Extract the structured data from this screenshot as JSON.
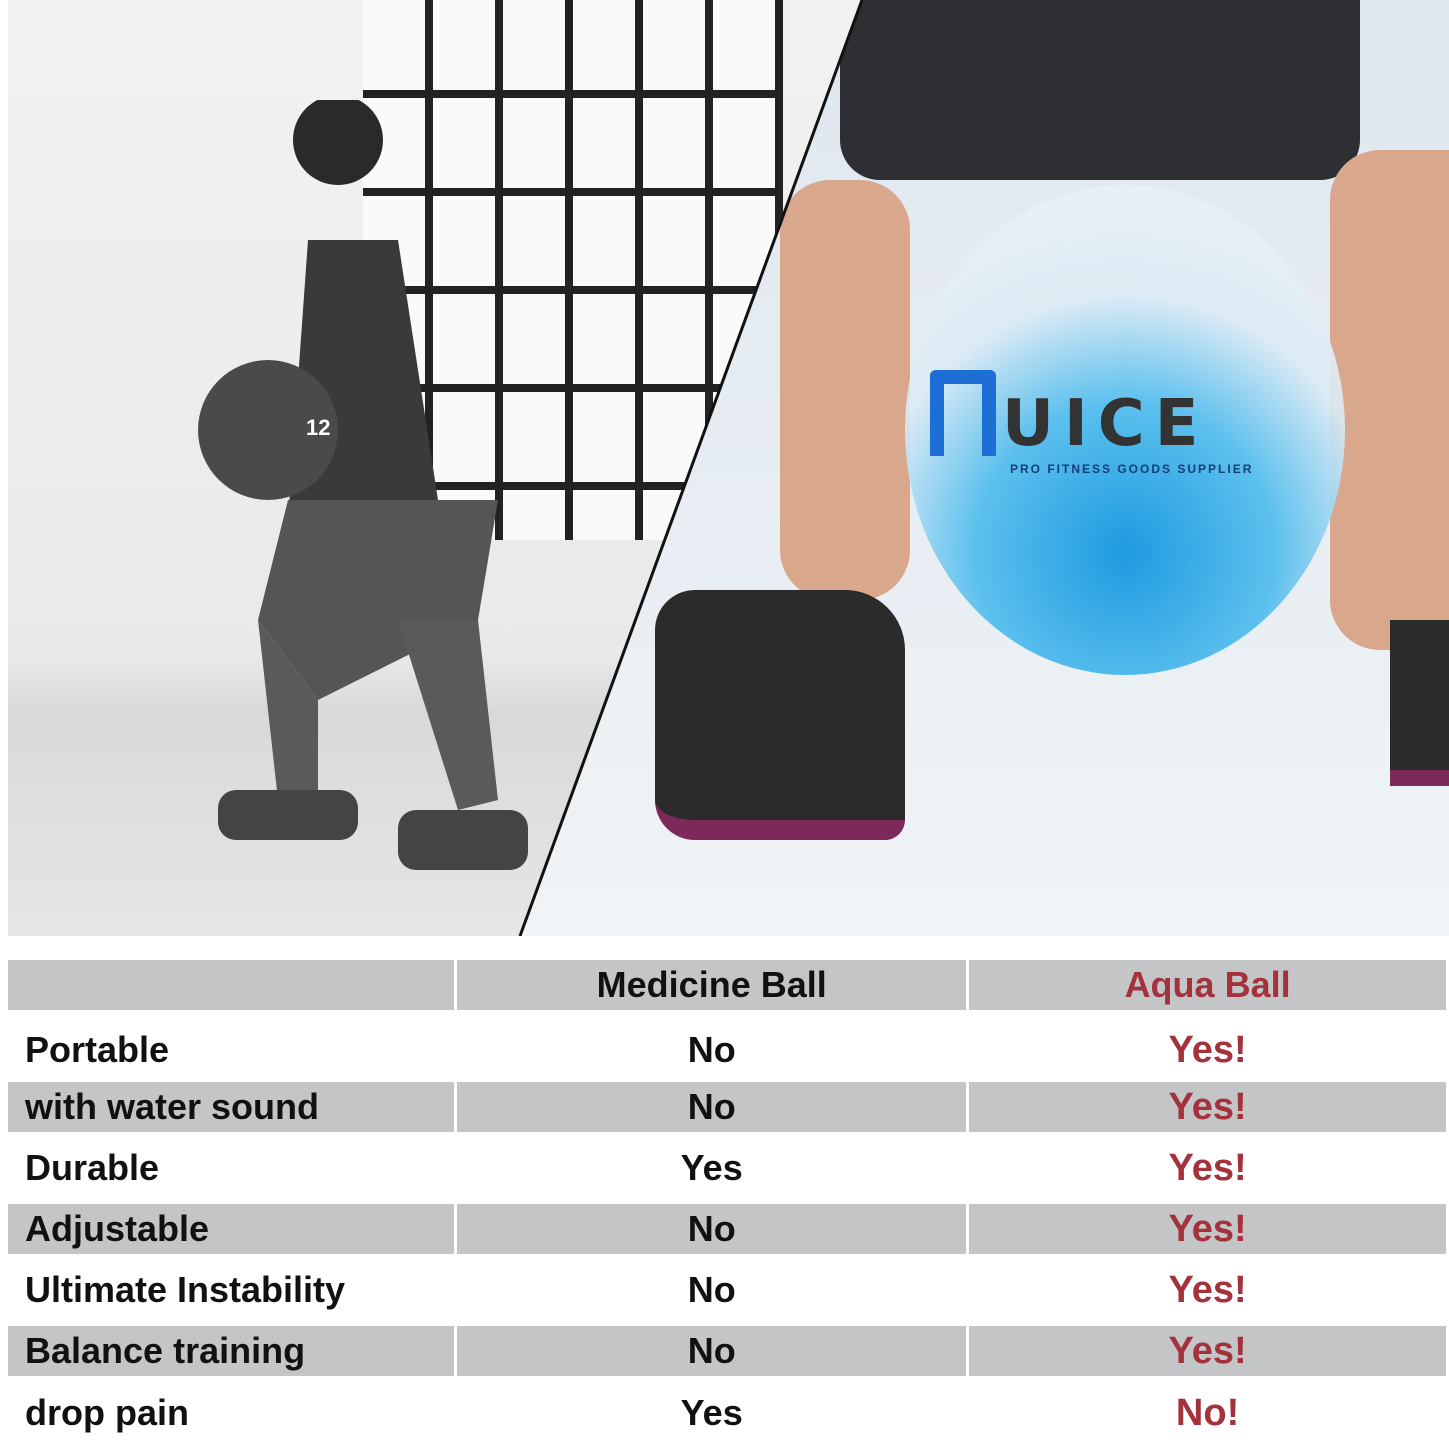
{
  "logo": {
    "brand": "UICE",
    "tagline": "PRO FITNESS GOODS SUPPLIER"
  },
  "table": {
    "headers": [
      "",
      "Medicine Ball",
      "Aqua Ball"
    ],
    "rows": [
      {
        "feature": "Portable",
        "medicine_ball": "No",
        "aqua_ball": "Yes!"
      },
      {
        "feature": "with water sound",
        "medicine_ball": "No",
        "aqua_ball": "Yes!"
      },
      {
        "feature": "Durable",
        "medicine_ball": "Yes",
        "aqua_ball": "Yes!"
      },
      {
        "feature": "Adjustable",
        "medicine_ball": "No",
        "aqua_ball": "Yes!"
      },
      {
        "feature": "Ultimate Instability",
        "medicine_ball": "No",
        "aqua_ball": "Yes!"
      },
      {
        "feature": "Balance training",
        "medicine_ball": "No",
        "aqua_ball": "Yes!"
      },
      {
        "feature": "drop pain",
        "medicine_ball": "Yes",
        "aqua_ball": "No!"
      }
    ]
  },
  "colors": {
    "header_bg": "#c4c5c7",
    "aqua_text": "#a3323c",
    "logo_blue": "#1d6fd6"
  }
}
